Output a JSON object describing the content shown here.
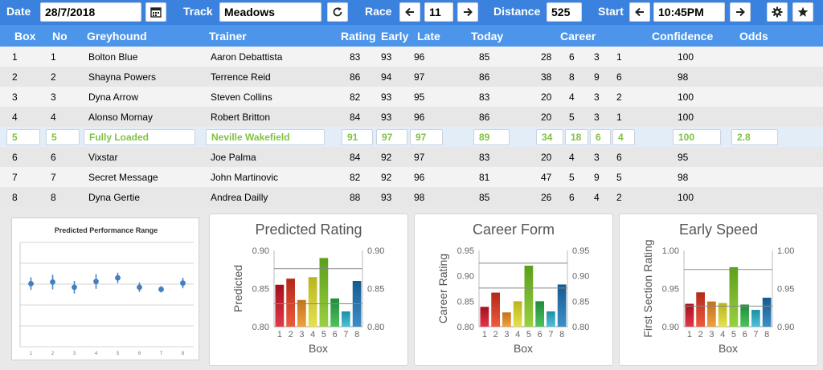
{
  "toolbar": {
    "date_label": "Date",
    "date_value": "28/7/2018",
    "track_label": "Track",
    "track_value": "Meadows",
    "race_label": "Race",
    "race_value": "11",
    "distance_label": "Distance",
    "distance_value": "525",
    "start_label": "Start",
    "start_value": "10:45PM",
    "icons": {
      "calendar": "calendar-icon",
      "refresh": "refresh-icon",
      "prev": "arrow-left-icon",
      "next": "arrow-right-icon",
      "settings": "gear-icon",
      "favorite": "star-icon"
    }
  },
  "columns": {
    "box": "Box",
    "no": "No",
    "greyhound": "Greyhound",
    "trainer": "Trainer",
    "rating": "Rating",
    "early": "Early",
    "late": "Late",
    "today": "Today",
    "career": "Career",
    "confidence": "Confidence",
    "odds": "Odds"
  },
  "rows": [
    {
      "box": "1",
      "no": "1",
      "greyhound": "Bolton Blue",
      "trainer": "Aaron Debattista",
      "rating": "83",
      "early": "93",
      "late": "96",
      "today": "85",
      "c1": "28",
      "c2": "6",
      "c3": "3",
      "c4": "1",
      "confidence": "100",
      "odds": ""
    },
    {
      "box": "2",
      "no": "2",
      "greyhound": "Shayna Powers",
      "trainer": "Terrence Reid",
      "rating": "86",
      "early": "94",
      "late": "97",
      "today": "86",
      "c1": "38",
      "c2": "8",
      "c3": "9",
      "c4": "6",
      "confidence": "98",
      "odds": ""
    },
    {
      "box": "3",
      "no": "3",
      "greyhound": "Dyna Arrow",
      "trainer": "Steven Collins",
      "rating": "82",
      "early": "93",
      "late": "95",
      "today": "83",
      "c1": "20",
      "c2": "4",
      "c3": "3",
      "c4": "2",
      "confidence": "100",
      "odds": ""
    },
    {
      "box": "4",
      "no": "4",
      "greyhound": "Alonso Mornay",
      "trainer": "Robert Britton",
      "rating": "84",
      "early": "93",
      "late": "96",
      "today": "86",
      "c1": "20",
      "c2": "5",
      "c3": "3",
      "c4": "1",
      "confidence": "100",
      "odds": ""
    },
    {
      "box": "5",
      "no": "5",
      "greyhound": "Fully Loaded",
      "trainer": "Neville Wakefield",
      "rating": "91",
      "early": "97",
      "late": "97",
      "today": "89",
      "c1": "34",
      "c2": "18",
      "c3": "6",
      "c4": "4",
      "confidence": "100",
      "odds": "2.8"
    },
    {
      "box": "6",
      "no": "6",
      "greyhound": "Vixstar",
      "trainer": "Joe Palma",
      "rating": "84",
      "early": "92",
      "late": "97",
      "today": "83",
      "c1": "20",
      "c2": "4",
      "c3": "3",
      "c4": "6",
      "confidence": "95",
      "odds": ""
    },
    {
      "box": "7",
      "no": "7",
      "greyhound": "Secret Message",
      "trainer": "John Martinovic",
      "rating": "82",
      "early": "92",
      "late": "96",
      "today": "81",
      "c1": "47",
      "c2": "5",
      "c3": "9",
      "c4": "5",
      "confidence": "98",
      "odds": ""
    },
    {
      "box": "8",
      "no": "8",
      "greyhound": "Dyna Gertie",
      "trainer": "Andrea Dailly",
      "rating": "88",
      "early": "93",
      "late": "98",
      "today": "85",
      "c1": "26",
      "c2": "6",
      "c3": "4",
      "c4": "2",
      "confidence": "100",
      "odds": ""
    }
  ],
  "selected_row": 4,
  "colors": {
    "toolbar": "#3b82de",
    "header": "#4c95eb",
    "highlight_text": "#7ec242"
  },
  "chart_data": [
    {
      "type": "scatter",
      "title": "Predicted Performance Range",
      "x": [
        "1",
        "2",
        "3",
        "4",
        "5",
        "6",
        "7",
        "8"
      ],
      "values": [
        0.605,
        0.62,
        0.57,
        0.625,
        0.66,
        0.57,
        0.55,
        0.61
      ],
      "errors": [
        0.06,
        0.07,
        0.06,
        0.07,
        0.05,
        0.045,
        0.03,
        0.05
      ],
      "ylim": [
        0,
        1
      ],
      "grid": true
    },
    {
      "type": "bar",
      "title": "Predicted Rating",
      "categories": [
        "1",
        "2",
        "3",
        "4",
        "5",
        "6",
        "7",
        "8"
      ],
      "values": [
        0.855,
        0.863,
        0.835,
        0.865,
        0.89,
        0.837,
        0.82,
        0.86
      ],
      "xlabel": "Box",
      "ylabel": "Predicted",
      "yticks": [
        "0.80",
        "0.85",
        "0.90"
      ],
      "ylim": [
        0.8,
        0.9
      ],
      "reference_lines": [
        0.876,
        0.83
      ],
      "grid": false
    },
    {
      "type": "bar",
      "title": "Career Form",
      "categories": [
        "1",
        "2",
        "3",
        "4",
        "5",
        "6",
        "7",
        "8"
      ],
      "values": [
        0.839,
        0.867,
        0.828,
        0.85,
        0.92,
        0.85,
        0.83,
        0.883
      ],
      "xlabel": "Box",
      "ylabel": "Career Rating",
      "yticks": [
        "0.80",
        "0.85",
        "0.90",
        "0.95"
      ],
      "ylim": [
        0.8,
        0.95
      ],
      "reference_lines": [
        0.925,
        0.876
      ],
      "grid": false
    },
    {
      "type": "bar",
      "title": "Early Speed",
      "categories": [
        "1",
        "2",
        "3",
        "4",
        "5",
        "6",
        "7",
        "8"
      ],
      "values": [
        0.93,
        0.945,
        0.933,
        0.931,
        0.978,
        0.929,
        0.922,
        0.938
      ],
      "xlabel": "Box",
      "ylabel": "First Section Rating",
      "yticks": [
        "0.90",
        "0.95",
        "1.00"
      ],
      "ylim": [
        0.9,
        1.0
      ],
      "reference_lines": [
        0.975,
        0.927
      ],
      "grid": false
    }
  ]
}
